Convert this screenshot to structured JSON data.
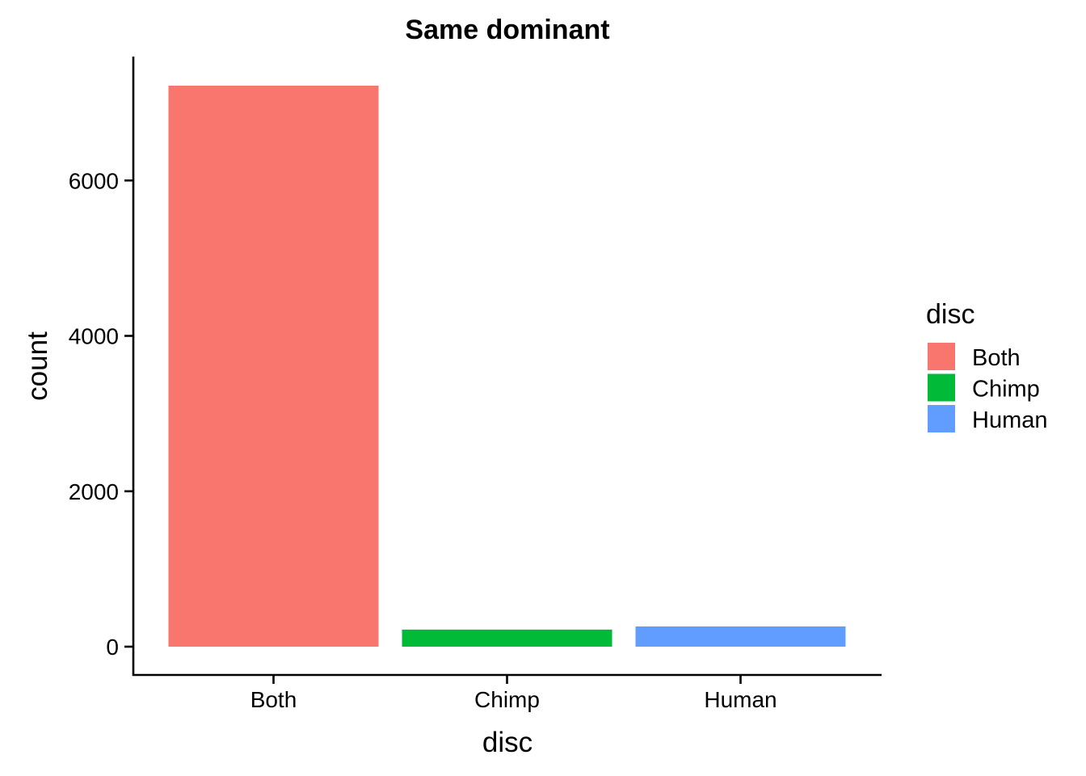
{
  "chart_data": {
    "type": "bar",
    "title": "Same dominant",
    "xlabel": "disc",
    "ylabel": "count",
    "categories": [
      "Both",
      "Chimp",
      "Human"
    ],
    "values": [
      7220,
      220,
      260
    ],
    "colors": [
      "#F8766D",
      "#00BA38",
      "#619CFF"
    ],
    "ylim": [
      0,
      7220
    ],
    "yticks": [
      0,
      2000,
      4000,
      6000
    ],
    "ytick_labels": [
      "0",
      "2000",
      "4000",
      "6000"
    ],
    "grid": false,
    "legend": {
      "title": "disc",
      "placement": "right",
      "entries": [
        "Both",
        "Chimp",
        "Human"
      ]
    }
  }
}
